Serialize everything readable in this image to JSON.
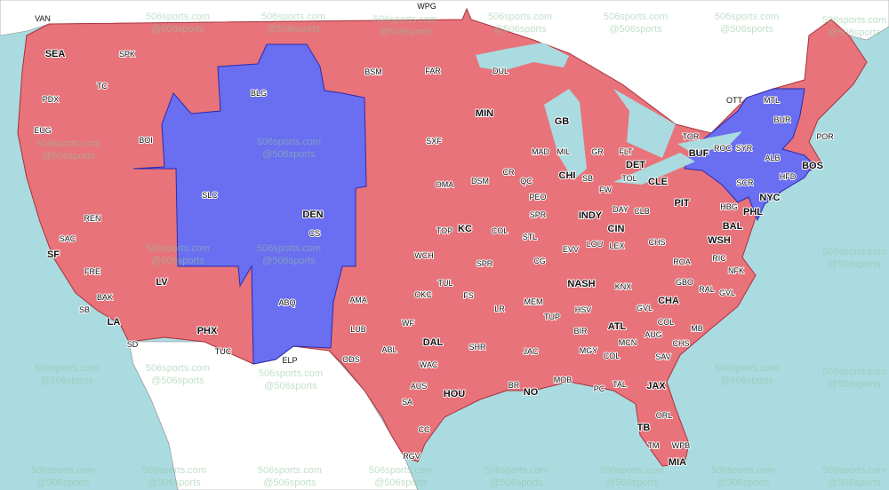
{
  "colors": {
    "water": "#aadbe0",
    "land": "#ffffff",
    "red_region": "#e8737a",
    "blue_region": "#6a6ef0",
    "border_red": "#a8323c",
    "border_blue": "#2a2ab0"
  },
  "watermark": {
    "line1": "506sports.com",
    "line2": "@506sports"
  },
  "labels": [
    {
      "text": "VAN",
      "bold": false
    },
    {
      "text": "SEA",
      "bold": true
    },
    {
      "text": "SPK",
      "bold": false
    },
    {
      "text": "TC",
      "bold": false
    },
    {
      "text": "PDX",
      "bold": false
    },
    {
      "text": "EUG",
      "bold": false
    },
    {
      "text": "BOI",
      "bold": false
    },
    {
      "text": "BLG",
      "bold": false
    },
    {
      "text": "BSM",
      "bold": false
    },
    {
      "text": "FAR",
      "bold": false
    },
    {
      "text": "DUL",
      "bold": false
    },
    {
      "text": "WPG",
      "bold": false
    },
    {
      "text": "MIN",
      "bold": true
    },
    {
      "text": "GB",
      "bold": true
    },
    {
      "text": "SXF",
      "bold": false
    },
    {
      "text": "MAD",
      "bold": false
    },
    {
      "text": "MIL",
      "bold": false
    },
    {
      "text": "GR",
      "bold": false
    },
    {
      "text": "FLT",
      "bold": false
    },
    {
      "text": "DET",
      "bold": true
    },
    {
      "text": "TOR",
      "bold": false
    },
    {
      "text": "OTT",
      "bold": false
    },
    {
      "text": "MTL",
      "bold": false
    },
    {
      "text": "BUR",
      "bold": false
    },
    {
      "text": "ROC",
      "bold": false
    },
    {
      "text": "SYR",
      "bold": false
    },
    {
      "text": "BUF",
      "bold": true
    },
    {
      "text": "POR",
      "bold": false
    },
    {
      "text": "ALB",
      "bold": false
    },
    {
      "text": "BOS",
      "bold": true
    },
    {
      "text": "HFD",
      "bold": false
    },
    {
      "text": "SCR",
      "bold": false
    },
    {
      "text": "NYC",
      "bold": true
    },
    {
      "text": "PHL",
      "bold": true
    },
    {
      "text": "HBG",
      "bold": false
    },
    {
      "text": "PIT",
      "bold": true
    },
    {
      "text": "BAL",
      "bold": true
    },
    {
      "text": "WSH",
      "bold": true
    },
    {
      "text": "CLE",
      "bold": true
    },
    {
      "text": "TOL",
      "bold": false
    },
    {
      "text": "CHI",
      "bold": true
    },
    {
      "text": "SB",
      "bold": false
    },
    {
      "text": "FW",
      "bold": false
    },
    {
      "text": "CR",
      "bold": false
    },
    {
      "text": "DSM",
      "bold": false
    },
    {
      "text": "QC",
      "bold": false
    },
    {
      "text": "OMA",
      "bold": false
    },
    {
      "text": "PEO",
      "bold": false
    },
    {
      "text": "SPR",
      "bold": false
    },
    {
      "text": "INDY",
      "bold": true
    },
    {
      "text": "DAY",
      "bold": false
    },
    {
      "text": "CLB",
      "bold": false
    },
    {
      "text": "CIN",
      "bold": true
    },
    {
      "text": "DEN",
      "bold": true
    },
    {
      "text": "CS",
      "bold": false
    },
    {
      "text": "SLC",
      "bold": false
    },
    {
      "text": "REN",
      "bold": false
    },
    {
      "text": "SAC",
      "bold": false
    },
    {
      "text": "SF",
      "bold": true
    },
    {
      "text": "FRE",
      "bold": false
    },
    {
      "text": "BAK",
      "bold": false
    },
    {
      "text": "SB",
      "bold": false
    },
    {
      "text": "LA",
      "bold": true
    },
    {
      "text": "SD",
      "bold": false
    },
    {
      "text": "LV",
      "bold": true
    },
    {
      "text": "PHX",
      "bold": true
    },
    {
      "text": "TUC",
      "bold": false
    },
    {
      "text": "ABQ",
      "bold": false
    },
    {
      "text": "ELP",
      "bold": false
    },
    {
      "text": "AMA",
      "bold": false
    },
    {
      "text": "LUB",
      "bold": false
    },
    {
      "text": "ODS",
      "bold": false
    },
    {
      "text": "TOP",
      "bold": false
    },
    {
      "text": "KC",
      "bold": true
    },
    {
      "text": "COL",
      "bold": false
    },
    {
      "text": "STL",
      "bold": false
    },
    {
      "text": "WCH",
      "bold": false
    },
    {
      "text": "SPR",
      "bold": false
    },
    {
      "text": "CG",
      "bold": false
    },
    {
      "text": "EVV",
      "bold": false
    },
    {
      "text": "LOU",
      "bold": false
    },
    {
      "text": "LEX",
      "bold": false
    },
    {
      "text": "CHS",
      "bold": false
    },
    {
      "text": "ROA",
      "bold": false
    },
    {
      "text": "RIC",
      "bold": false
    },
    {
      "text": "NFK",
      "bold": false
    },
    {
      "text": "OKC",
      "bold": false
    },
    {
      "text": "TUL",
      "bold": false
    },
    {
      "text": "FS",
      "bold": false
    },
    {
      "text": "NASH",
      "bold": true
    },
    {
      "text": "KNX",
      "bold": false
    },
    {
      "text": "GBO",
      "bold": false
    },
    {
      "text": "RAL",
      "bold": false
    },
    {
      "text": "GVL",
      "bold": false
    },
    {
      "text": "CHA",
      "bold": true
    },
    {
      "text": "MEM",
      "bold": false
    },
    {
      "text": "LR",
      "bold": false
    },
    {
      "text": "TUP",
      "bold": false
    },
    {
      "text": "HSV",
      "bold": false
    },
    {
      "text": "GVL",
      "bold": false
    },
    {
      "text": "COL",
      "bold": false
    },
    {
      "text": "AUG",
      "bold": false
    },
    {
      "text": "BIR",
      "bold": false
    },
    {
      "text": "ATL",
      "bold": true
    },
    {
      "text": "MCN",
      "bold": false
    },
    {
      "text": "MGY",
      "bold": false
    },
    {
      "text": "COL",
      "bold": false
    },
    {
      "text": "MB",
      "bold": false
    },
    {
      "text": "CHS",
      "bold": false
    },
    {
      "text": "SAV",
      "bold": false
    },
    {
      "text": "DAL",
      "bold": true
    },
    {
      "text": "WF",
      "bold": false
    },
    {
      "text": "ABL",
      "bold": false
    },
    {
      "text": "WAC",
      "bold": false
    },
    {
      "text": "SHR",
      "bold": false
    },
    {
      "text": "JAC",
      "bold": false
    },
    {
      "text": "MOB",
      "bold": false
    },
    {
      "text": "PC",
      "bold": false
    },
    {
      "text": "TAL",
      "bold": false
    },
    {
      "text": "JAX",
      "bold": true
    },
    {
      "text": "AUS",
      "bold": false
    },
    {
      "text": "HOU",
      "bold": true
    },
    {
      "text": "SA",
      "bold": false
    },
    {
      "text": "BR",
      "bold": false
    },
    {
      "text": "NO",
      "bold": true
    },
    {
      "text": "ORL",
      "bold": false
    },
    {
      "text": "TB",
      "bold": true
    },
    {
      "text": "TM",
      "bold": false
    },
    {
      "text": "WPB",
      "bold": false
    },
    {
      "text": "MIA",
      "bold": true
    },
    {
      "text": "CC",
      "bold": false
    },
    {
      "text": "RGV",
      "bold": false
    }
  ]
}
